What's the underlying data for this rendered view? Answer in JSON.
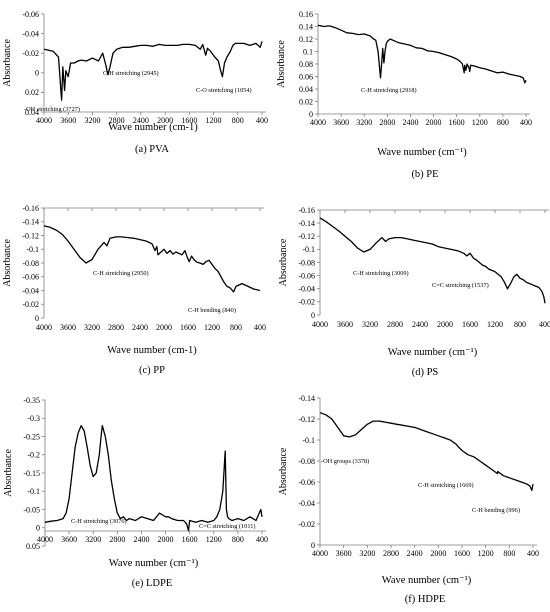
{
  "chart_data": [
    {
      "type": "line",
      "caption": "(a) PVA",
      "xlabel": "Wave number (cm-1)",
      "ylabel": "Absorbance",
      "xlim": [
        4000,
        400
      ],
      "ylim": [
        0.04,
        -0.06
      ],
      "x_ticks": [
        4000,
        3600,
        3200,
        2800,
        2400,
        2000,
        1600,
        1200,
        800,
        400
      ],
      "y_ticks": [
        -0.06,
        -0.04,
        -0.02,
        0,
        0.02,
        0.04
      ],
      "y_tick_labels": [
        "-0.06",
        "-0.04",
        "-0.02",
        "0",
        "0.02",
        "0.04"
      ],
      "series": [
        {
          "x": [
            4000,
            3850,
            3760,
            3730,
            3710,
            3690,
            3660,
            3640,
            3600,
            3560,
            3500,
            3440,
            3380,
            3300,
            3200,
            3100,
            3030,
            2980,
            2945,
            2910,
            2860,
            2800,
            2700,
            2600,
            2500,
            2400,
            2300,
            2200,
            2100,
            2000,
            1900,
            1800,
            1700,
            1600,
            1500,
            1420,
            1380,
            1330,
            1300,
            1250,
            1180,
            1120,
            1090,
            1054,
            1020,
            980,
            930,
            880,
            840,
            800,
            700,
            600,
            500,
            430,
            400
          ],
          "y": [
            -0.024,
            -0.022,
            -0.016,
            0.01,
            0.028,
            -0.006,
            0.018,
            -0.002,
            0.004,
            -0.01,
            -0.01,
            -0.012,
            -0.013,
            -0.012,
            -0.015,
            -0.012,
            -0.02,
            -0.008,
            0.002,
            -0.006,
            -0.02,
            -0.024,
            -0.026,
            -0.026,
            -0.027,
            -0.028,
            -0.028,
            -0.027,
            -0.029,
            -0.028,
            -0.028,
            -0.028,
            -0.029,
            -0.029,
            -0.028,
            -0.024,
            -0.029,
            -0.018,
            -0.025,
            -0.022,
            -0.016,
            -0.012,
            -0.004,
            0.004,
            -0.01,
            -0.016,
            -0.021,
            -0.028,
            -0.03,
            -0.03,
            -0.03,
            -0.028,
            -0.03,
            -0.026,
            -0.032
          ]
        }
      ],
      "annotations": [
        {
          "text": "-OH stretching (3727)"
        },
        {
          "text": "C-H stretching (2945)"
        },
        {
          "text": "C-O stretching (1054)"
        }
      ]
    },
    {
      "type": "line",
      "caption": "(b) PE",
      "xlabel": "Wave number (cm⁻¹)",
      "ylabel": "Absorbance",
      "xlim": [
        4000,
        400
      ],
      "ylim": [
        0,
        0.16
      ],
      "x_ticks": [
        4000,
        3600,
        3200,
        2800,
        2400,
        2000,
        1600,
        1200,
        800,
        400
      ],
      "y_ticks": [
        0,
        0.02,
        0.04,
        0.06,
        0.08,
        0.1,
        0.12,
        0.14,
        0.16
      ],
      "y_tick_labels": [
        "0",
        "0.02",
        "0.04",
        "0.06",
        "0.08",
        "0.1",
        "0.12",
        "0.14",
        "0.16"
      ],
      "series": [
        {
          "x": [
            4000,
            3900,
            3800,
            3700,
            3600,
            3500,
            3400,
            3300,
            3200,
            3100,
            3050,
            3000,
            2960,
            2935,
            2918,
            2900,
            2880,
            2860,
            2840,
            2820,
            2800,
            2750,
            2700,
            2600,
            2500,
            2400,
            2300,
            2200,
            2100,
            2000,
            1900,
            1800,
            1700,
            1600,
            1550,
            1500,
            1470,
            1460,
            1440,
            1420,
            1380,
            1375,
            1360,
            1300,
            1200,
            1100,
            1000,
            900,
            800,
            700,
            600,
            500,
            450,
            420,
            400
          ],
          "y": [
            0.142,
            0.14,
            0.141,
            0.138,
            0.134,
            0.13,
            0.129,
            0.127,
            0.128,
            0.125,
            0.121,
            0.118,
            0.1,
            0.075,
            0.058,
            0.08,
            0.105,
            0.082,
            0.1,
            0.112,
            0.116,
            0.12,
            0.118,
            0.114,
            0.112,
            0.11,
            0.106,
            0.105,
            0.101,
            0.1,
            0.098,
            0.095,
            0.092,
            0.088,
            0.085,
            0.08,
            0.066,
            0.078,
            0.07,
            0.08,
            0.072,
            0.068,
            0.078,
            0.077,
            0.074,
            0.072,
            0.069,
            0.066,
            0.067,
            0.064,
            0.062,
            0.06,
            0.058,
            0.05,
            0.054
          ]
        }
      ],
      "annotations": [
        {
          "text": "C-H stretching (2918)"
        }
      ]
    },
    {
      "type": "line",
      "caption": "(c) PP",
      "xlabel": "Wave number (cm-1)",
      "ylabel": "Absorbance",
      "xlim": [
        4000,
        400
      ],
      "ylim": [
        0,
        -0.16
      ],
      "x_ticks": [
        4000,
        3600,
        3200,
        2800,
        2400,
        2000,
        1600,
        1200,
        800,
        400
      ],
      "y_ticks": [
        -0.16,
        -0.14,
        -0.12,
        -0.1,
        -0.08,
        -0.06,
        -0.04,
        -0.02,
        0
      ],
      "y_tick_labels": [
        "-0.16",
        "-0.14",
        "-0.12",
        "-0.1",
        "-0.08",
        "-0.06",
        "-0.04",
        "-0.02",
        "0"
      ],
      "series": [
        {
          "x": [
            4000,
            3900,
            3800,
            3700,
            3600,
            3500,
            3400,
            3300,
            3200,
            3100,
            3000,
            2950,
            2900,
            2800,
            2700,
            2600,
            2500,
            2400,
            2300,
            2200,
            2150,
            2120,
            2100,
            2050,
            2000,
            1950,
            1900,
            1850,
            1800,
            1700,
            1650,
            1620,
            1580,
            1540,
            1500,
            1450,
            1400,
            1350,
            1300,
            1250,
            1200,
            1150,
            1100,
            1050,
            1000,
            950,
            900,
            860,
            840,
            820,
            800,
            700,
            600,
            500,
            400
          ],
          "y": [
            -0.134,
            -0.132,
            -0.128,
            -0.122,
            -0.112,
            -0.1,
            -0.088,
            -0.08,
            -0.085,
            -0.1,
            -0.11,
            -0.105,
            -0.116,
            -0.118,
            -0.118,
            -0.117,
            -0.116,
            -0.114,
            -0.112,
            -0.108,
            -0.098,
            -0.104,
            -0.092,
            -0.096,
            -0.1,
            -0.094,
            -0.098,
            -0.093,
            -0.096,
            -0.092,
            -0.098,
            -0.09,
            -0.082,
            -0.09,
            -0.085,
            -0.081,
            -0.08,
            -0.078,
            -0.082,
            -0.084,
            -0.078,
            -0.072,
            -0.068,
            -0.06,
            -0.052,
            -0.046,
            -0.044,
            -0.04,
            -0.038,
            -0.042,
            -0.046,
            -0.05,
            -0.046,
            -0.042,
            -0.04
          ]
        }
      ],
      "annotations": [
        {
          "text": "C-H stretching (2950)"
        },
        {
          "text": "C-H bending (840)"
        }
      ]
    },
    {
      "type": "line",
      "caption": "(d) PS",
      "xlabel": "Wave number (cm⁻¹)",
      "ylabel": "Absorbance",
      "xlim": [
        4000,
        400
      ],
      "ylim": [
        0,
        -0.16
      ],
      "x_ticks": [
        4000,
        3600,
        3200,
        2800,
        2400,
        2000,
        1600,
        1200,
        800,
        400
      ],
      "y_ticks": [
        -0.16,
        -0.14,
        -0.12,
        -0.1,
        -0.08,
        -0.06,
        -0.04,
        -0.02,
        0
      ],
      "y_tick_labels": [
        "-0.16",
        "-0.14",
        "-0.12",
        "-0.1",
        "-0.08",
        "-0.06",
        "-0.04",
        "-0.02",
        "0"
      ],
      "series": [
        {
          "x": [
            4000,
            3900,
            3800,
            3700,
            3600,
            3500,
            3400,
            3300,
            3200,
            3100,
            3009,
            2950,
            2900,
            2800,
            2700,
            2600,
            2500,
            2400,
            2300,
            2200,
            2100,
            2000,
            1900,
            1800,
            1700,
            1650,
            1600,
            1537,
            1500,
            1450,
            1400,
            1350,
            1300,
            1250,
            1200,
            1150,
            1100,
            1050,
            1000,
            950,
            900,
            850,
            800,
            750,
            700,
            650,
            600,
            550,
            500,
            450,
            420,
            400
          ],
          "y": [
            -0.148,
            -0.142,
            -0.135,
            -0.128,
            -0.12,
            -0.112,
            -0.102,
            -0.096,
            -0.1,
            -0.11,
            -0.118,
            -0.112,
            -0.116,
            -0.118,
            -0.118,
            -0.116,
            -0.114,
            -0.112,
            -0.11,
            -0.108,
            -0.104,
            -0.102,
            -0.1,
            -0.098,
            -0.094,
            -0.09,
            -0.094,
            -0.086,
            -0.084,
            -0.08,
            -0.076,
            -0.074,
            -0.07,
            -0.068,
            -0.066,
            -0.062,
            -0.058,
            -0.05,
            -0.04,
            -0.048,
            -0.058,
            -0.062,
            -0.056,
            -0.054,
            -0.05,
            -0.048,
            -0.046,
            -0.044,
            -0.042,
            -0.036,
            -0.028,
            -0.018
          ]
        }
      ],
      "annotations": [
        {
          "text": "C-H stretching (3009)"
        },
        {
          "text": "C=C stretching (1537)"
        }
      ]
    },
    {
      "type": "line",
      "caption": "(e) LDPE",
      "xlabel": "Wave number (cm⁻¹)",
      "ylabel": "Absorbance",
      "xlim": [
        4000,
        400
      ],
      "ylim": [
        0.05,
        -0.35
      ],
      "x_ticks": [
        4000,
        3600,
        3200,
        2800,
        2400,
        2000,
        1600,
        1200,
        800,
        400
      ],
      "y_ticks": [
        -0.35,
        -0.3,
        -0.25,
        -0.2,
        -0.15,
        -0.1,
        -0.05,
        0,
        0.05
      ],
      "y_tick_labels": [
        "-0.35",
        "-0.3",
        "-0.25",
        "-0.2",
        "-0.15",
        "-0.1",
        "-0.05",
        "0",
        "0.05"
      ],
      "series": [
        {
          "x": [
            4000,
            3900,
            3800,
            3700,
            3650,
            3600,
            3550,
            3500,
            3450,
            3400,
            3350,
            3300,
            3250,
            3200,
            3150,
            3100,
            3076,
            3050,
            3000,
            2950,
            2900,
            2850,
            2800,
            2750,
            2700,
            2650,
            2600,
            2500,
            2400,
            2300,
            2200,
            2100,
            2050,
            2000,
            1950,
            1900,
            1800,
            1700,
            1650,
            1620,
            1600,
            1500,
            1400,
            1300,
            1200,
            1150,
            1100,
            1050,
            1011,
            990,
            970,
            950,
            900,
            800,
            700,
            600,
            500,
            420,
            400
          ],
          "y": [
            -0.015,
            -0.018,
            -0.02,
            -0.025,
            -0.04,
            -0.08,
            -0.15,
            -0.22,
            -0.26,
            -0.28,
            -0.265,
            -0.22,
            -0.17,
            -0.14,
            -0.15,
            -0.2,
            -0.24,
            -0.28,
            -0.25,
            -0.2,
            -0.13,
            -0.08,
            -0.04,
            -0.025,
            -0.03,
            -0.02,
            -0.025,
            -0.02,
            -0.03,
            -0.025,
            -0.02,
            -0.04,
            -0.035,
            -0.03,
            -0.03,
            -0.025,
            -0.02,
            -0.02,
            -0.01,
            0.008,
            -0.02,
            -0.015,
            -0.02,
            -0.015,
            -0.02,
            -0.03,
            -0.05,
            -0.1,
            -0.21,
            -0.05,
            -0.03,
            -0.025,
            -0.02,
            -0.025,
            -0.02,
            -0.03,
            -0.02,
            -0.05,
            -0.03
          ]
        }
      ],
      "annotations": [
        {
          "text": "C-H stretching (3076)"
        },
        {
          "text": "C=C stretching (1011)"
        }
      ]
    },
    {
      "type": "line",
      "caption": "(f) HDPE",
      "xlabel": "Wave number (cm⁻¹)",
      "ylabel": "Absorbance",
      "xlim": [
        4000,
        400
      ],
      "ylim": [
        0,
        -0.14
      ],
      "x_ticks": [
        4000,
        3600,
        3200,
        2800,
        2400,
        2000,
        1600,
        1200,
        800,
        400
      ],
      "y_ticks": [
        -0.14,
        -0.12,
        -0.1,
        -0.08,
        -0.06,
        -0.04,
        -0.02,
        0
      ],
      "y_tick_labels": [
        "-0.14",
        "-0.12",
        "-0.1",
        "-0.08",
        "-0.06",
        "-0.04",
        "-0.02",
        "0"
      ],
      "series": [
        {
          "x": [
            4000,
            3900,
            3800,
            3700,
            3600,
            3500,
            3400,
            3378,
            3300,
            3200,
            3100,
            3000,
            2900,
            2800,
            2700,
            2600,
            2500,
            2400,
            2300,
            2200,
            2100,
            2000,
            1900,
            1800,
            1700,
            1669,
            1600,
            1500,
            1400,
            1300,
            1200,
            1100,
            1000,
            996,
            900,
            800,
            700,
            600,
            500,
            450,
            420,
            400
          ],
          "y": [
            -0.126,
            -0.124,
            -0.12,
            -0.112,
            -0.104,
            -0.103,
            -0.105,
            -0.106,
            -0.11,
            -0.115,
            -0.118,
            -0.118,
            -0.117,
            -0.116,
            -0.115,
            -0.114,
            -0.113,
            -0.112,
            -0.11,
            -0.108,
            -0.106,
            -0.104,
            -0.102,
            -0.1,
            -0.096,
            -0.094,
            -0.09,
            -0.086,
            -0.084,
            -0.08,
            -0.076,
            -0.072,
            -0.068,
            -0.07,
            -0.066,
            -0.064,
            -0.062,
            -0.06,
            -0.058,
            -0.056,
            -0.052,
            -0.058
          ]
        }
      ],
      "annotations": [
        {
          "text": "-OH groups (3378)"
        },
        {
          "text": "C-H stretching (1669)"
        },
        {
          "text": "C-H bending (996)"
        }
      ]
    }
  ]
}
